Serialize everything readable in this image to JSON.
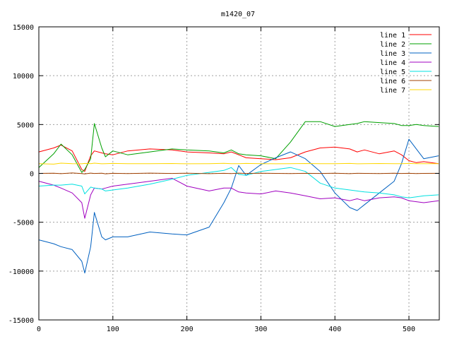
{
  "chart_data": {
    "type": "line",
    "title": "m1420_07",
    "xlabel": "",
    "ylabel": "",
    "xlim": [
      0,
      541
    ],
    "ylim": [
      -15000,
      15000
    ],
    "x_ticks": [
      0,
      100,
      200,
      300,
      400,
      500
    ],
    "y_ticks": [
      -15000,
      -10000,
      -5000,
      0,
      5000,
      10000,
      15000
    ],
    "grid": true,
    "legend_position": "top-right",
    "x": [
      0,
      20,
      30,
      45,
      58,
      62,
      70,
      75,
      85,
      90,
      100,
      120,
      150,
      180,
      200,
      230,
      250,
      260,
      270,
      280,
      300,
      320,
      340,
      360,
      380,
      400,
      420,
      430,
      440,
      460,
      480,
      490,
      500,
      510,
      520,
      540
    ],
    "series": [
      {
        "name": "line 1",
        "color": "#ff0000",
        "values": [
          2200,
          2600,
          2900,
          2300,
          400,
          200,
          1800,
          2300,
          2100,
          2000,
          1900,
          2300,
          2500,
          2400,
          2200,
          2100,
          2000,
          2200,
          1900,
          1600,
          1500,
          1400,
          1600,
          2200,
          2600,
          2700,
          2500,
          2200,
          2400,
          2000,
          2300,
          1900,
          1300,
          1100,
          1200,
          1000
        ]
      },
      {
        "name": "line 2",
        "color": "#00a000",
        "values": [
          600,
          2000,
          3000,
          1900,
          100,
          400,
          1500,
          5100,
          2600,
          1700,
          2300,
          1900,
          2200,
          2500,
          2400,
          2300,
          2100,
          2400,
          2000,
          1900,
          1800,
          1500,
          3200,
          5300,
          5300,
          4800,
          5000,
          5100,
          5300,
          5200,
          5100,
          4900,
          4900,
          5000,
          4900,
          4800
        ]
      },
      {
        "name": "line 3",
        "color": "#0060c0",
        "values": [
          -6800,
          -7200,
          -7500,
          -7800,
          -9000,
          -10200,
          -7500,
          -4000,
          -6500,
          -6800,
          -6500,
          -6500,
          -6000,
          -6200,
          -6300,
          -5500,
          -3000,
          -1500,
          800,
          -200,
          900,
          1600,
          2200,
          1500,
          200,
          -2000,
          -3500,
          -3800,
          -3200,
          -2000,
          -800,
          1000,
          3500,
          2500,
          1500,
          1800
        ]
      },
      {
        "name": "line 4",
        "color": "#a000c0",
        "values": [
          -800,
          -1200,
          -1500,
          -2000,
          -3000,
          -4600,
          -2200,
          -1500,
          -1600,
          -1500,
          -1300,
          -1100,
          -800,
          -500,
          -1300,
          -1800,
          -1500,
          -1500,
          -1900,
          -2000,
          -2100,
          -1800,
          -2000,
          -2300,
          -2600,
          -2500,
          -2800,
          -2600,
          -2800,
          -2500,
          -2400,
          -2500,
          -2800,
          -2900,
          -3000,
          -2800
        ]
      },
      {
        "name": "line 5",
        "color": "#00e0e0",
        "values": [
          -1300,
          -1200,
          -1200,
          -1100,
          -1300,
          -2100,
          -1400,
          -1500,
          -1600,
          -1800,
          -1700,
          -1500,
          -1100,
          -600,
          -200,
          100,
          300,
          600,
          -100,
          -200,
          200,
          400,
          600,
          200,
          -1000,
          -1500,
          -1700,
          -1800,
          -1900,
          -2000,
          -2200,
          -2400,
          -2500,
          -2400,
          -2300,
          -2200
        ]
      },
      {
        "name": "line 6",
        "color": "#a04000",
        "values": [
          0,
          20,
          -30,
          40,
          -20,
          -60,
          30,
          -10,
          20,
          -40,
          10,
          -20,
          30,
          -10,
          20,
          -30,
          10,
          -20,
          30,
          -10,
          20,
          0,
          -20,
          10,
          -10,
          20,
          -30,
          10,
          0,
          -20,
          20,
          -10,
          10,
          -20,
          0,
          10
        ]
      },
      {
        "name": "line 7",
        "color": "#ffd700",
        "values": [
          1000,
          950,
          1050,
          1000,
          980,
          1020,
          1000,
          1050,
          980,
          1000,
          1020,
          990,
          1000,
          1010,
          980,
          1000,
          1030,
          990,
          1000,
          1020,
          1000,
          980,
          1000,
          1010,
          990,
          1000,
          1020,
          980,
          1000,
          1010,
          990,
          1000,
          1020,
          990,
          1000,
          1000
        ]
      }
    ]
  }
}
